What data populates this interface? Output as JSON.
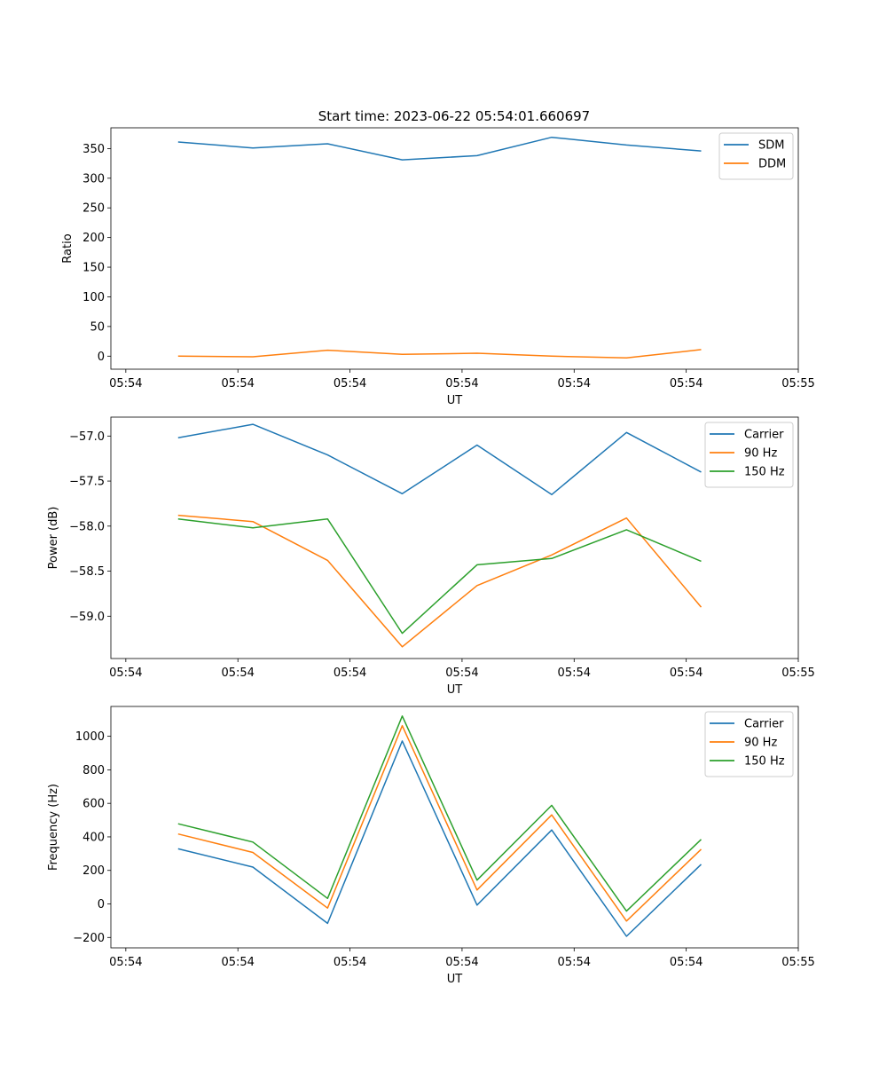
{
  "title": "Start time: 2023-06-22 05:54:01.660697",
  "colors": {
    "c0": "#1f77b4",
    "c1": "#ff7f0e",
    "c2": "#2ca02c"
  },
  "chart_data": [
    {
      "type": "line",
      "xlabel": "UT",
      "ylabel": "Ratio",
      "ylim": [
        -22,
        385
      ],
      "yticks": [
        0,
        50,
        100,
        150,
        200,
        250,
        300,
        350
      ],
      "yticklabels": [
        "0",
        "50",
        "100",
        "150",
        "200",
        "250",
        "300",
        "350"
      ],
      "xlim": [
        -0.9,
        8.3
      ],
      "xticks": [
        -0.7,
        0.8,
        2.3,
        3.8,
        5.3,
        6.8,
        8.3
      ],
      "xticklabels": [
        "05:54",
        "05:54",
        "05:54",
        "05:54",
        "05:54",
        "05:54",
        "05:55"
      ],
      "legend_position": "top-right",
      "series": [
        {
          "name": "SDM",
          "color": "#1f77b4",
          "x": [
            0,
            1,
            2,
            3,
            4,
            5,
            6,
            7
          ],
          "y": [
            361,
            351,
            358,
            331,
            338,
            369,
            356,
            346
          ]
        },
        {
          "name": "DDM",
          "color": "#ff7f0e",
          "x": [
            0,
            1,
            2,
            3,
            4,
            5,
            6,
            7
          ],
          "y": [
            0,
            -1,
            10,
            3,
            5,
            0,
            -3,
            11
          ]
        }
      ]
    },
    {
      "type": "line",
      "xlabel": "UT",
      "ylabel": "Power (dB)",
      "ylim": [
        -59.47,
        -56.79
      ],
      "yticks": [
        -59.0,
        -58.5,
        -58.0,
        -57.5,
        -57.0
      ],
      "yticklabels": [
        "−59.0",
        "−58.5",
        "−58.0",
        "−57.5",
        "−57.0"
      ],
      "xlim": [
        -0.9,
        8.3
      ],
      "xticks": [
        -0.7,
        0.8,
        2.3,
        3.8,
        5.3,
        6.8,
        8.3
      ],
      "xticklabels": [
        "05:54",
        "05:54",
        "05:54",
        "05:54",
        "05:54",
        "05:54",
        "05:55"
      ],
      "legend_position": "top-right",
      "series": [
        {
          "name": "Carrier",
          "color": "#1f77b4",
          "x": [
            0,
            1,
            2,
            3,
            4,
            5,
            6,
            7
          ],
          "y": [
            -57.02,
            -56.87,
            -57.21,
            -57.64,
            -57.1,
            -57.65,
            -56.96,
            -57.4
          ]
        },
        {
          "name": "90 Hz",
          "color": "#ff7f0e",
          "x": [
            0,
            1,
            2,
            3,
            4,
            5,
            6,
            7
          ],
          "y": [
            -57.88,
            -57.95,
            -58.38,
            -59.34,
            -58.66,
            -58.32,
            -57.91,
            -58.9
          ]
        },
        {
          "name": "150 Hz",
          "color": "#2ca02c",
          "x": [
            0,
            1,
            2,
            3,
            4,
            5,
            6,
            7
          ],
          "y": [
            -57.92,
            -58.02,
            -57.92,
            -59.19,
            -58.43,
            -58.36,
            -58.04,
            -58.39
          ]
        }
      ]
    },
    {
      "type": "line",
      "xlabel": "UT",
      "ylabel": "Frequency (Hz)",
      "ylim": [
        -262,
        1178
      ],
      "yticks": [
        -200,
        0,
        200,
        400,
        600,
        800,
        1000
      ],
      "yticklabels": [
        "−200",
        "0",
        "200",
        "400",
        "600",
        "800",
        "1000"
      ],
      "xlim": [
        -0.9,
        8.3
      ],
      "xticks": [
        -0.7,
        0.8,
        2.3,
        3.8,
        5.3,
        6.8,
        8.3
      ],
      "xticklabels": [
        "05:54",
        "05:54",
        "05:54",
        "05:54",
        "05:54",
        "05:54",
        "05:55"
      ],
      "legend_position": "top-right",
      "series": [
        {
          "name": "Carrier",
          "color": "#1f77b4",
          "x": [
            0,
            1,
            2,
            3,
            4,
            5,
            6,
            7
          ],
          "y": [
            329,
            220,
            -116,
            972,
            -7,
            441,
            -193,
            236
          ]
        },
        {
          "name": "90 Hz",
          "color": "#ff7f0e",
          "x": [
            0,
            1,
            2,
            3,
            4,
            5,
            6,
            7
          ],
          "y": [
            417,
            307,
            -25,
            1063,
            83,
            531,
            -102,
            326
          ]
        },
        {
          "name": "150 Hz",
          "color": "#2ca02c",
          "x": [
            0,
            1,
            2,
            3,
            4,
            5,
            6,
            7
          ],
          "y": [
            478,
            369,
            33,
            1121,
            142,
            588,
            -43,
            385
          ]
        }
      ]
    }
  ]
}
